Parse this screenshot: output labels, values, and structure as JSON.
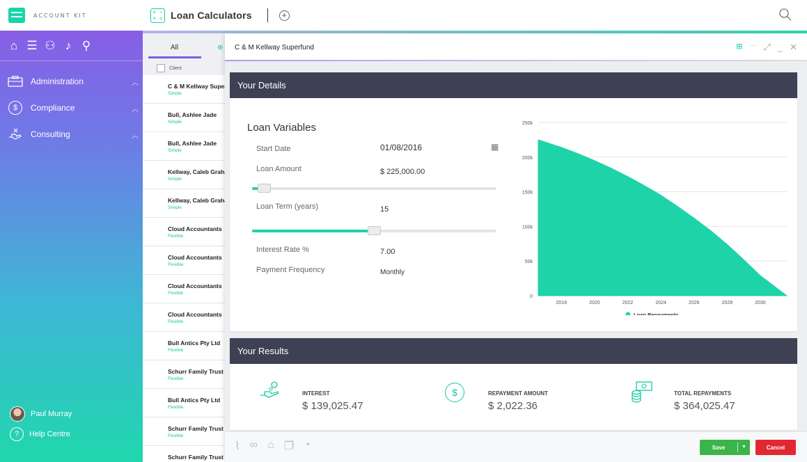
{
  "brand": {
    "name": "ACCOUNT KIT"
  },
  "sidebar": {
    "items": [
      {
        "label": "Administration",
        "icon": "briefcase-icon"
      },
      {
        "label": "Compliance",
        "icon": "dollar-icon"
      },
      {
        "label": "Consulting",
        "icon": "hand-icon"
      }
    ],
    "user": "Paul Murray",
    "help": "Help Centre"
  },
  "topbar": {
    "title": "Loan Calculators"
  },
  "list": {
    "tab_all": "All",
    "column": "Client",
    "items": [
      {
        "name": "C & M Kellway Superfund",
        "type": "Simple"
      },
      {
        "name": "Bull, Ashlee Jade",
        "type": "Simple"
      },
      {
        "name": "Bull, Ashlee Jade",
        "type": "Simple"
      },
      {
        "name": "Kellway, Caleb Graham",
        "type": "Simple"
      },
      {
        "name": "Kellway, Caleb Graham",
        "type": "Simple"
      },
      {
        "name": "Cloud Accountants",
        "type": "Flexible"
      },
      {
        "name": "Cloud Accountants",
        "type": "Flexible"
      },
      {
        "name": "Cloud Accountants",
        "type": "Flexible"
      },
      {
        "name": "Cloud Accountants",
        "type": "Flexible"
      },
      {
        "name": "Bull Antics Pty Ltd",
        "type": "Flexible"
      },
      {
        "name": "Schurr Family Trust",
        "type": "Flexible"
      },
      {
        "name": "Bull Antics Pty Ltd",
        "type": "Flexible"
      },
      {
        "name": "Schurr Family Trust",
        "type": "Flexible"
      },
      {
        "name": "Schurr Family Trust",
        "type": ""
      }
    ]
  },
  "dialog": {
    "title": "C & M Kellway Superfund",
    "details": {
      "header": "Your Details",
      "heading": "Loan Variables",
      "start_date_label": "Start Date",
      "start_date": "01/08/2016",
      "loan_amount_label": "Loan Amount",
      "loan_amount": "$ 225,000.00",
      "loan_amount_slider": 0.05,
      "loan_term_label": "Loan Term (years)",
      "loan_term": "15",
      "loan_term_slider": 0.5,
      "interest_label": "Interest Rate %",
      "interest": "7.00",
      "frequency_label": "Payment Frequency",
      "frequency": "Monthly"
    },
    "results": {
      "header": "Your Results",
      "interest_label": "INTEREST",
      "interest": "$ 139,025.47",
      "repayment_label": "REPAYMENT AMOUNT",
      "repayment": "$ 2,022.36",
      "total_label": "TOTAL REPAYMENTS",
      "total": "$ 364,025.47"
    },
    "save_label": "Save",
    "cancel_label": "Cancel"
  },
  "colors": {
    "accent": "#1fd3a8",
    "header": "#3d4153",
    "save": "#3bb44a",
    "cancel": "#e12832"
  },
  "chart_data": {
    "type": "area",
    "series": [
      {
        "name": "Loan Repayments",
        "x": [
          2016.6,
          2018,
          2019,
          2020,
          2021,
          2022,
          2023,
          2024,
          2025,
          2026,
          2027,
          2028,
          2029,
          2030,
          2031.6
        ],
        "values": [
          225000,
          214000,
          205000,
          195000,
          184000,
          172000,
          159000,
          145000,
          129000,
          112000,
          94000,
          74000,
          52000,
          29000,
          0
        ]
      }
    ],
    "x_ticks": [
      "2018",
      "2020",
      "2022",
      "2024",
      "2026",
      "2028",
      "2030"
    ],
    "y_ticks": [
      "0",
      "50k",
      "100k",
      "150k",
      "200k",
      "250k"
    ],
    "ylim": [
      0,
      250000
    ],
    "xlim": [
      2016.6,
      2031.6
    ],
    "legend": "bottom"
  }
}
